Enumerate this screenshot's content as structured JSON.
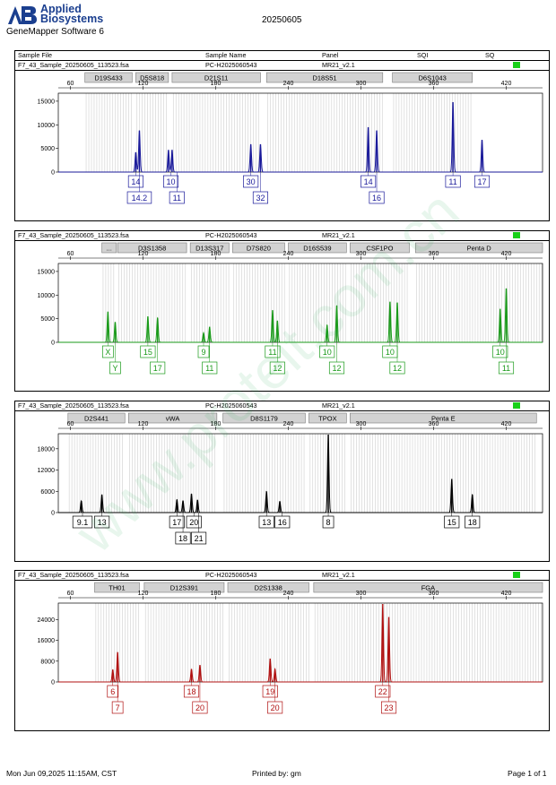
{
  "header": {
    "logo_line1": "Applied",
    "logo_line2": "Biosystems",
    "software": "GeneMapper Software 6",
    "doc_title": "20250605",
    "columns": [
      "Sample File",
      "Sample Name",
      "Panel",
      "SQI",
      "SQ"
    ]
  },
  "watermark": "www.proteit.com.cn",
  "sample": {
    "file": "F7_43_Sample_20250605_113523.fsa",
    "name": "PC-H2025060543",
    "panel": "MR21_v2.1",
    "sqi_color": "#19d019"
  },
  "chart_data": [
    {
      "type": "line",
      "dye": "blue",
      "color": "#1a1a9a",
      "x_ticks": [
        60,
        120,
        180,
        240,
        300,
        360,
        420
      ],
      "xlim": [
        50,
        450
      ],
      "y_ticks": [
        0,
        5000,
        10000,
        15000
      ],
      "y_tick_labels": [
        "0",
        "5000",
        "10000",
        "15000"
      ],
      "ylim": [
        0,
        16500
      ],
      "markers": [
        {
          "name": "D19S433",
          "from": 72,
          "to": 111
        },
        {
          "name": "D5S818",
          "from": 114,
          "to": 141
        },
        {
          "name": "D21S11",
          "from": 144,
          "to": 217
        },
        {
          "name": "D18S51",
          "from": 222,
          "to": 318
        },
        {
          "name": "D6S1043",
          "from": 326,
          "to": 392
        }
      ],
      "peaks": [
        {
          "x": 114,
          "h": 4200
        },
        {
          "x": 117,
          "h": 8800
        },
        {
          "x": 141,
          "h": 4700
        },
        {
          "x": 144,
          "h": 4700
        },
        {
          "x": 209,
          "h": 5900
        },
        {
          "x": 217,
          "h": 5900
        },
        {
          "x": 306,
          "h": 9500
        },
        {
          "x": 313,
          "h": 8800
        },
        {
          "x": 376,
          "h": 14800
        },
        {
          "x": 400,
          "h": 6800
        }
      ],
      "labels_row1": [
        {
          "x": 114,
          "text": "14"
        },
        {
          "x": 143,
          "text": "10"
        },
        {
          "x": 209,
          "text": "30"
        },
        {
          "x": 306,
          "text": "14"
        },
        {
          "x": 376,
          "text": "11"
        },
        {
          "x": 400,
          "text": "17"
        }
      ],
      "labels_row2": [
        {
          "x": 117,
          "text": "14.2"
        },
        {
          "x": 148,
          "text": "11"
        },
        {
          "x": 217,
          "text": "32"
        },
        {
          "x": 313,
          "text": "16"
        }
      ]
    },
    {
      "type": "line",
      "dye": "green",
      "color": "#1a9a1a",
      "x_ticks": [
        60,
        120,
        180,
        240,
        300,
        360,
        420
      ],
      "xlim": [
        50,
        450
      ],
      "y_ticks": [
        0,
        5000,
        10000,
        15000
      ],
      "y_tick_labels": [
        "0",
        "5000",
        "10000",
        "15000"
      ],
      "ylim": [
        0,
        16500
      ],
      "markers": [
        {
          "name": "...",
          "from": 86,
          "to": 98
        },
        {
          "name": "D3S1358",
          "from": 99,
          "to": 156
        },
        {
          "name": "D13S317",
          "from": 159,
          "to": 191
        },
        {
          "name": "D7S820",
          "from": 194,
          "to": 237
        },
        {
          "name": "D16S539",
          "from": 240,
          "to": 288
        },
        {
          "name": "CSF1PO",
          "from": 291,
          "to": 340
        },
        {
          "name": "Penta D",
          "from": 345,
          "to": 450
        }
      ],
      "peaks": [
        {
          "x": 91,
          "h": 6500
        },
        {
          "x": 97,
          "h": 4300
        },
        {
          "x": 124,
          "h": 5500
        },
        {
          "x": 132,
          "h": 5200
        },
        {
          "x": 170,
          "h": 2000
        },
        {
          "x": 175,
          "h": 3300
        },
        {
          "x": 227,
          "h": 6800
        },
        {
          "x": 231,
          "h": 4600
        },
        {
          "x": 272,
          "h": 3700
        },
        {
          "x": 280,
          "h": 7800
        },
        {
          "x": 324,
          "h": 8600
        },
        {
          "x": 330,
          "h": 8400
        },
        {
          "x": 415,
          "h": 7100
        },
        {
          "x": 420,
          "h": 11400
        }
      ],
      "labels_row1": [
        {
          "x": 91,
          "text": "X"
        },
        {
          "x": 124,
          "text": "15"
        },
        {
          "x": 170,
          "text": "9"
        },
        {
          "x": 227,
          "text": "11"
        },
        {
          "x": 272,
          "text": "10"
        },
        {
          "x": 324,
          "text": "10"
        },
        {
          "x": 415,
          "text": "10"
        }
      ],
      "labels_row2": [
        {
          "x": 97,
          "text": "Y"
        },
        {
          "x": 132,
          "text": "17"
        },
        {
          "x": 175,
          "text": "11"
        },
        {
          "x": 231,
          "text": "12"
        },
        {
          "x": 280,
          "text": "12"
        },
        {
          "x": 330,
          "text": "12"
        },
        {
          "x": 420,
          "text": "11"
        }
      ]
    },
    {
      "type": "line",
      "dye": "black",
      "color": "#000000",
      "x_ticks": [
        60,
        120,
        180,
        240,
        300,
        360,
        420
      ],
      "xlim": [
        50,
        450
      ],
      "y_ticks": [
        0,
        6000,
        12000,
        18000
      ],
      "y_tick_labels": [
        "0",
        "6000",
        "12000",
        "18000"
      ],
      "ylim": [
        0,
        22000
      ],
      "markers": [
        {
          "name": "D2S441",
          "from": 58,
          "to": 105
        },
        {
          "name": "vWA",
          "from": 108,
          "to": 181
        },
        {
          "name": "D8S1179",
          "from": 186,
          "to": 254
        },
        {
          "name": "TPOX",
          "from": 257,
          "to": 288
        },
        {
          "name": "Penta E",
          "from": 291,
          "to": 445
        }
      ],
      "peaks": [
        {
          "x": 69,
          "h": 3300
        },
        {
          "x": 86,
          "h": 5100
        },
        {
          "x": 148,
          "h": 3700
        },
        {
          "x": 153,
          "h": 3400
        },
        {
          "x": 160,
          "h": 5300
        },
        {
          "x": 165,
          "h": 3600
        },
        {
          "x": 222,
          "h": 6000
        },
        {
          "x": 233,
          "h": 3200
        },
        {
          "x": 273,
          "h": 22000
        },
        {
          "x": 375,
          "h": 9500
        },
        {
          "x": 392,
          "h": 5100
        }
      ],
      "labels_row1": [
        {
          "x": 70,
          "text": "9.1"
        },
        {
          "x": 86,
          "text": "13"
        },
        {
          "x": 148,
          "text": "17"
        },
        {
          "x": 162,
          "text": "20"
        },
        {
          "x": 222,
          "text": "13"
        },
        {
          "x": 235,
          "text": "16"
        },
        {
          "x": 273,
          "text": "8"
        },
        {
          "x": 375,
          "text": "15"
        },
        {
          "x": 392,
          "text": "18"
        }
      ],
      "labels_row2": [
        {
          "x": 153,
          "text": "18"
        },
        {
          "x": 166,
          "text": "21"
        }
      ]
    },
    {
      "type": "line",
      "dye": "red",
      "color": "#b01010",
      "x_ticks": [
        60,
        120,
        180,
        240,
        300,
        360,
        420
      ],
      "xlim": [
        50,
        450
      ],
      "y_ticks": [
        0,
        8000,
        16000,
        24000
      ],
      "y_tick_labels": [
        "0",
        "8000",
        "16000",
        "24000"
      ],
      "ylim": [
        0,
        30000
      ],
      "markers": [
        {
          "name": "TH01",
          "from": 80,
          "to": 117
        },
        {
          "name": "D12S391",
          "from": 121,
          "to": 187
        },
        {
          "name": "D2S1338",
          "from": 190,
          "to": 257
        },
        {
          "name": "FGA",
          "from": 261,
          "to": 450
        }
      ],
      "peaks": [
        {
          "x": 95,
          "h": 4800
        },
        {
          "x": 99,
          "h": 11500
        },
        {
          "x": 160,
          "h": 5000
        },
        {
          "x": 167,
          "h": 6500
        },
        {
          "x": 225,
          "h": 9000
        },
        {
          "x": 229,
          "h": 5000
        },
        {
          "x": 318,
          "h": 30000
        },
        {
          "x": 323,
          "h": 25000
        }
      ],
      "labels_row1": [
        {
          "x": 95,
          "text": "6"
        },
        {
          "x": 160,
          "text": "18"
        },
        {
          "x": 225,
          "text": "19"
        },
        {
          "x": 318,
          "text": "22"
        }
      ],
      "labels_row2": [
        {
          "x": 99,
          "text": "7"
        },
        {
          "x": 167,
          "text": "20"
        },
        {
          "x": 229,
          "text": "20"
        },
        {
          "x": 323,
          "text": "23"
        }
      ]
    }
  ],
  "footer": {
    "date": "Mon Jun 09,2025 11:15AM, CST",
    "printed_by": "Printed by: gm",
    "page": "Page 1 of 1"
  }
}
